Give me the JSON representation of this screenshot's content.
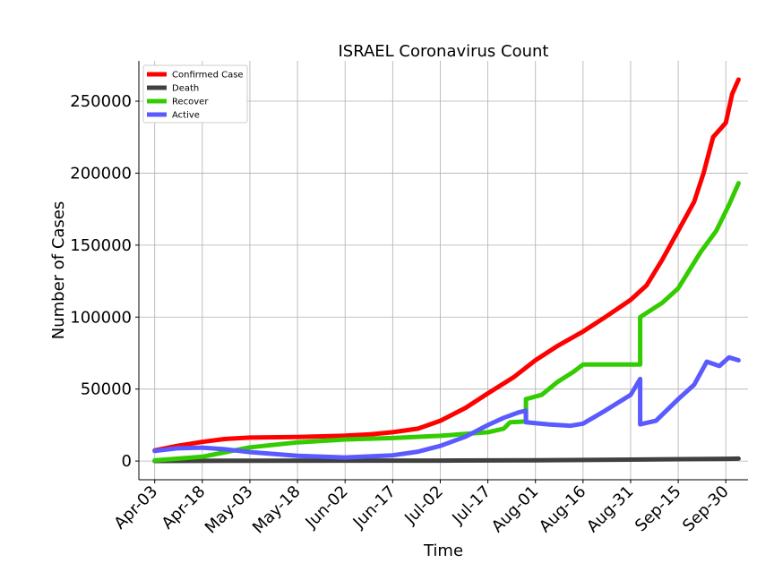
{
  "chart_data": {
    "type": "line",
    "title": "ISRAEL Coronavirus Count",
    "xlabel": "Time",
    "ylabel": "Number of Cases",
    "grid": true,
    "legend_position": "top-left",
    "x_tick_labels": [
      "Apr-03",
      "Apr-18",
      "May-03",
      "May-18",
      "Jun-02",
      "Jun-17",
      "Jul-02",
      "Jul-17",
      "Aug-01",
      "Aug-16",
      "Aug-31",
      "Sep-15",
      "Sep-30"
    ],
    "x_range": [
      "2020-03-29",
      "2020-10-07"
    ],
    "y_ticks": [
      0,
      50000,
      100000,
      150000,
      200000,
      250000
    ],
    "ylim": [
      -13000,
      278000
    ],
    "series": [
      {
        "name": "Confirmed Case",
        "color": "#ff0000",
        "points": [
          [
            "2020-04-03",
            7400
          ],
          [
            "2020-04-10",
            10500
          ],
          [
            "2020-04-18",
            13300
          ],
          [
            "2020-04-25",
            15300
          ],
          [
            "2020-05-03",
            16300
          ],
          [
            "2020-05-18",
            16700
          ],
          [
            "2020-06-02",
            17600
          ],
          [
            "2020-06-10",
            18500
          ],
          [
            "2020-06-17",
            20000
          ],
          [
            "2020-06-25",
            22500
          ],
          [
            "2020-07-02",
            28000
          ],
          [
            "2020-07-10",
            37000
          ],
          [
            "2020-07-17",
            47000
          ],
          [
            "2020-07-25",
            58000
          ],
          [
            "2020-08-01",
            70000
          ],
          [
            "2020-08-08",
            80000
          ],
          [
            "2020-08-16",
            90000
          ],
          [
            "2020-08-23",
            100000
          ],
          [
            "2020-08-31",
            112000
          ],
          [
            "2020-09-05",
            122000
          ],
          [
            "2020-09-10",
            140000
          ],
          [
            "2020-09-15",
            160000
          ],
          [
            "2020-09-20",
            180000
          ],
          [
            "2020-09-23",
            200000
          ],
          [
            "2020-09-26",
            225000
          ],
          [
            "2020-09-30",
            235000
          ],
          [
            "2020-10-02",
            255000
          ],
          [
            "2020-10-04",
            265000
          ]
        ]
      },
      {
        "name": "Death",
        "color": "#404040",
        "points": [
          [
            "2020-04-03",
            60
          ],
          [
            "2020-05-03",
            230
          ],
          [
            "2020-06-02",
            290
          ],
          [
            "2020-07-02",
            330
          ],
          [
            "2020-08-01",
            520
          ],
          [
            "2020-08-31",
            970
          ],
          [
            "2020-09-30",
            1570
          ],
          [
            "2020-10-04",
            1700
          ]
        ]
      },
      {
        "name": "Recover",
        "color": "#33cc00",
        "points": [
          [
            "2020-04-03",
            400
          ],
          [
            "2020-04-18",
            3000
          ],
          [
            "2020-05-03",
            9500
          ],
          [
            "2020-05-18",
            13000
          ],
          [
            "2020-06-02",
            15000
          ],
          [
            "2020-06-17",
            16000
          ],
          [
            "2020-07-02",
            17500
          ],
          [
            "2020-07-17",
            20000
          ],
          [
            "2020-07-22",
            22500
          ],
          [
            "2020-07-24",
            27000
          ],
          [
            "2020-07-29",
            27500
          ],
          [
            "2020-07-29",
            43000
          ],
          [
            "2020-08-03",
            46000
          ],
          [
            "2020-08-08",
            55000
          ],
          [
            "2020-08-13",
            62000
          ],
          [
            "2020-08-16",
            67000
          ],
          [
            "2020-09-03",
            67000
          ],
          [
            "2020-09-03",
            100000
          ],
          [
            "2020-09-10",
            110000
          ],
          [
            "2020-09-15",
            120000
          ],
          [
            "2020-09-22",
            145000
          ],
          [
            "2020-09-27",
            160000
          ],
          [
            "2020-10-01",
            178000
          ],
          [
            "2020-10-04",
            193000
          ]
        ]
      },
      {
        "name": "Active",
        "color": "#5a5aff",
        "points": [
          [
            "2020-04-03",
            7000
          ],
          [
            "2020-04-10",
            8800
          ],
          [
            "2020-04-18",
            9300
          ],
          [
            "2020-04-25",
            8200
          ],
          [
            "2020-05-03",
            6200
          ],
          [
            "2020-05-18",
            3600
          ],
          [
            "2020-06-02",
            2500
          ],
          [
            "2020-06-17",
            4000
          ],
          [
            "2020-06-25",
            6500
          ],
          [
            "2020-07-02",
            10500
          ],
          [
            "2020-07-10",
            17000
          ],
          [
            "2020-07-17",
            25000
          ],
          [
            "2020-07-22",
            30000
          ],
          [
            "2020-07-27",
            34000
          ],
          [
            "2020-07-29",
            35000
          ],
          [
            "2020-07-29",
            27000
          ],
          [
            "2020-08-05",
            25500
          ],
          [
            "2020-08-12",
            24500
          ],
          [
            "2020-08-16",
            26000
          ],
          [
            "2020-08-23",
            35000
          ],
          [
            "2020-08-31",
            46000
          ],
          [
            "2020-09-03",
            57000
          ],
          [
            "2020-09-03",
            25500
          ],
          [
            "2020-09-08",
            28000
          ],
          [
            "2020-09-15",
            43000
          ],
          [
            "2020-09-20",
            53000
          ],
          [
            "2020-09-24",
            69000
          ],
          [
            "2020-09-28",
            66000
          ],
          [
            "2020-10-01",
            72000
          ],
          [
            "2020-10-04",
            70000
          ]
        ]
      }
    ]
  }
}
